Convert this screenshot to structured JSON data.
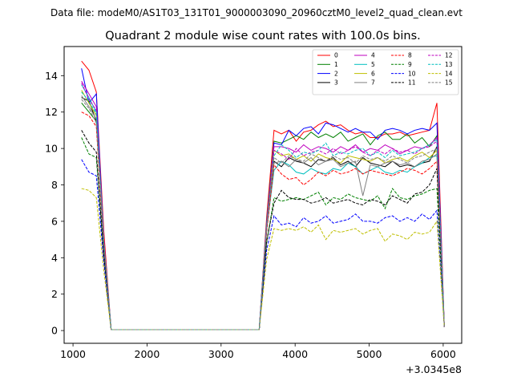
{
  "header": {
    "suptitle": "Data file: modeM0/AS1T03_131T01_9000003090_20960cztM0_level2_quad_clean.evt"
  },
  "chart_data": {
    "type": "line",
    "title": "Quadrant 2 module wise count rates with 100.0s bins.",
    "xlabel": "",
    "ylabel": "",
    "x_offset_label": "+3.0345e8",
    "xlim": [
      880,
      6250
    ],
    "ylim": [
      -0.7,
      15.6
    ],
    "x_ticks": [
      1000,
      2000,
      3000,
      4000,
      5000,
      6000
    ],
    "x_tick_labels": [
      "1000",
      "2000",
      "3000",
      "4000",
      "5000",
      "6000"
    ],
    "y_ticks": [
      0,
      2,
      4,
      6,
      8,
      10,
      12,
      14
    ],
    "y_tick_labels": [
      "0",
      "2",
      "4",
      "6",
      "8",
      "10",
      "12",
      "14"
    ],
    "grid": false,
    "legend_position": "upper right",
    "legend_columns": 4,
    "x": [
      1115,
      1215,
      1315,
      1415,
      1515,
      1615,
      1715,
      1815,
      1915,
      2015,
      2115,
      2215,
      2315,
      2415,
      2515,
      2615,
      2715,
      2815,
      2915,
      3015,
      3115,
      3215,
      3315,
      3415,
      3515,
      3615,
      3715,
      3815,
      3915,
      4015,
      4115,
      4215,
      4315,
      4415,
      4515,
      4615,
      4715,
      4815,
      4915,
      5015,
      5115,
      5215,
      5315,
      5415,
      5515,
      5615,
      5715,
      5815,
      5915,
      6015
    ],
    "series": [
      {
        "name": "0",
        "color": "#ff0000",
        "dash": "solid",
        "values": [
          14.8,
          14.3,
          13.1,
          5.5,
          0.05,
          0.05,
          0.05,
          0.05,
          0.05,
          0.05,
          0.05,
          0.05,
          0.05,
          0.05,
          0.05,
          0.05,
          0.05,
          0.05,
          0.05,
          0.05,
          0.05,
          0.05,
          0.05,
          0.05,
          0.05,
          6.2,
          11.0,
          10.8,
          11.0,
          10.4,
          10.9,
          11.0,
          11.3,
          11.5,
          11.2,
          11.3,
          11.0,
          10.8,
          10.9,
          10.6,
          10.6,
          10.8,
          10.8,
          10.9,
          10.7,
          10.8,
          10.9,
          11.0,
          12.5,
          0.2
        ]
      },
      {
        "name": "1",
        "color": "#008000",
        "dash": "solid",
        "values": [
          12.5,
          12.0,
          11.5,
          4.8,
          0.05,
          0.05,
          0.05,
          0.05,
          0.05,
          0.05,
          0.05,
          0.05,
          0.05,
          0.05,
          0.05,
          0.05,
          0.05,
          0.05,
          0.05,
          0.05,
          0.05,
          0.05,
          0.05,
          0.05,
          0.05,
          6.0,
          10.4,
          10.3,
          10.5,
          10.7,
          10.5,
          10.9,
          10.6,
          10.8,
          10.6,
          10.9,
          10.4,
          10.6,
          10.8,
          10.2,
          10.7,
          10.9,
          10.5,
          10.5,
          10.8,
          10.3,
          10.6,
          10.1,
          10.7,
          0.2
        ]
      },
      {
        "name": "2",
        "color": "#0000ff",
        "dash": "solid",
        "values": [
          14.4,
          12.5,
          13.0,
          5.0,
          0.05,
          0.05,
          0.05,
          0.05,
          0.05,
          0.05,
          0.05,
          0.05,
          0.05,
          0.05,
          0.05,
          0.05,
          0.05,
          0.05,
          0.05,
          0.05,
          0.05,
          0.05,
          0.05,
          0.05,
          0.05,
          5.8,
          10.3,
          10.2,
          11.0,
          10.7,
          11.1,
          11.2,
          10.8,
          11.4,
          11.3,
          11.1,
          10.9,
          11.1,
          10.9,
          10.9,
          10.5,
          11.0,
          11.1,
          11.0,
          10.8,
          11.0,
          11.1,
          11.0,
          11.4,
          0.2
        ]
      },
      {
        "name": "3",
        "color": "#000000",
        "dash": "solid",
        "values": [
          12.8,
          12.6,
          11.5,
          4.9,
          0.05,
          0.05,
          0.05,
          0.05,
          0.05,
          0.05,
          0.05,
          0.05,
          0.05,
          0.05,
          0.05,
          0.05,
          0.05,
          0.05,
          0.05,
          0.05,
          0.05,
          0.05,
          0.05,
          0.05,
          0.05,
          5.7,
          9.3,
          9.0,
          9.5,
          9.3,
          9.2,
          9.0,
          9.4,
          9.3,
          9.5,
          9.1,
          9.3,
          9.0,
          9.5,
          9.2,
          9.1,
          9.0,
          9.3,
          9.0,
          9.1,
          9.0,
          9.2,
          9.3,
          10.1,
          0.2
        ]
      },
      {
        "name": "4",
        "color": "#bf00bf",
        "dash": "solid",
        "values": [
          13.7,
          13.0,
          12.3,
          5.0,
          0.05,
          0.05,
          0.05,
          0.05,
          0.05,
          0.05,
          0.05,
          0.05,
          0.05,
          0.05,
          0.05,
          0.05,
          0.05,
          0.05,
          0.05,
          0.05,
          0.05,
          0.05,
          0.05,
          0.05,
          0.05,
          5.9,
          10.1,
          10.1,
          10.0,
          9.8,
          10.2,
          9.9,
          10.1,
          10.0,
          9.8,
          10.1,
          9.9,
          10.2,
          9.8,
          10.0,
          9.9,
          10.2,
          10.0,
          9.7,
          9.9,
          10.1,
          10.0,
          10.2,
          10.6,
          0.2
        ]
      },
      {
        "name": "5",
        "color": "#00bfbf",
        "dash": "solid",
        "values": [
          13.5,
          12.8,
          12.0,
          4.9,
          0.05,
          0.05,
          0.05,
          0.05,
          0.05,
          0.05,
          0.05,
          0.05,
          0.05,
          0.05,
          0.05,
          0.05,
          0.05,
          0.05,
          0.05,
          0.05,
          0.05,
          0.05,
          0.05,
          0.05,
          0.05,
          5.5,
          8.8,
          9.3,
          9.1,
          8.7,
          8.6,
          8.9,
          8.7,
          8.6,
          8.9,
          8.8,
          9.2,
          9.0,
          8.6,
          8.8,
          9.0,
          8.7,
          8.6,
          8.8,
          8.7,
          9.0,
          9.2,
          9.5,
          9.6,
          0.2
        ]
      },
      {
        "name": "6",
        "color": "#bfbf00",
        "dash": "solid",
        "values": [
          13.2,
          12.5,
          11.8,
          4.8,
          0.05,
          0.05,
          0.05,
          0.05,
          0.05,
          0.05,
          0.05,
          0.05,
          0.05,
          0.05,
          0.05,
          0.05,
          0.05,
          0.05,
          0.05,
          0.05,
          0.05,
          0.05,
          0.05,
          0.05,
          0.05,
          5.6,
          9.9,
          9.6,
          9.7,
          9.4,
          9.6,
          9.3,
          9.7,
          9.5,
          9.4,
          9.2,
          9.6,
          9.5,
          9.4,
          9.3,
          9.5,
          9.2,
          9.4,
          9.5,
          9.3,
          9.6,
          9.8,
          9.5,
          9.9,
          0.2
        ]
      },
      {
        "name": "7",
        "color": "#808080",
        "dash": "solid",
        "values": [
          12.9,
          12.3,
          11.6,
          4.8,
          0.05,
          0.05,
          0.05,
          0.05,
          0.05,
          0.05,
          0.05,
          0.05,
          0.05,
          0.05,
          0.05,
          0.05,
          0.05,
          0.05,
          0.05,
          0.05,
          0.05,
          0.05,
          0.05,
          0.05,
          0.05,
          5.5,
          9.2,
          9.3,
          9.0,
          9.4,
          9.2,
          9.5,
          9.1,
          9.3,
          9.4,
          9.0,
          9.2,
          9.3,
          7.4,
          9.1,
          9.0,
          9.2,
          9.3,
          9.1,
          9.2,
          9.0,
          9.3,
          9.4,
          9.7,
          0.2
        ]
      },
      {
        "name": "8",
        "color": "#ff0000",
        "dash": "dashed",
        "values": [
          12.0,
          11.8,
          11.2,
          4.6,
          0.05,
          0.05,
          0.05,
          0.05,
          0.05,
          0.05,
          0.05,
          0.05,
          0.05,
          0.05,
          0.05,
          0.05,
          0.05,
          0.05,
          0.05,
          0.05,
          0.05,
          0.05,
          0.05,
          0.05,
          0.05,
          5.4,
          9.1,
          8.6,
          8.3,
          8.4,
          8.0,
          8.3,
          8.7,
          8.5,
          8.8,
          8.6,
          8.7,
          8.9,
          8.6,
          8.8,
          8.7,
          8.6,
          8.5,
          8.7,
          8.9,
          8.8,
          8.6,
          8.9,
          9.3,
          0.2
        ]
      },
      {
        "name": "9",
        "color": "#008000",
        "dash": "dashed",
        "values": [
          10.6,
          9.7,
          9.5,
          4.1,
          0.05,
          0.05,
          0.05,
          0.05,
          0.05,
          0.05,
          0.05,
          0.05,
          0.05,
          0.05,
          0.05,
          0.05,
          0.05,
          0.05,
          0.05,
          0.05,
          0.05,
          0.05,
          0.05,
          0.05,
          0.05,
          4.8,
          7.3,
          7.1,
          7.2,
          7.3,
          7.2,
          7.4,
          7.6,
          6.9,
          7.3,
          7.2,
          7.5,
          7.3,
          7.2,
          7.1,
          7.4,
          6.7,
          7.8,
          7.3,
          7.2,
          7.4,
          7.5,
          7.7,
          7.8,
          0.2
        ]
      },
      {
        "name": "10",
        "color": "#0000ff",
        "dash": "dashed",
        "values": [
          9.4,
          8.7,
          8.5,
          3.8,
          0.05,
          0.05,
          0.05,
          0.05,
          0.05,
          0.05,
          0.05,
          0.05,
          0.05,
          0.05,
          0.05,
          0.05,
          0.05,
          0.05,
          0.05,
          0.05,
          0.05,
          0.05,
          0.05,
          0.05,
          0.05,
          4.4,
          6.3,
          5.8,
          5.9,
          5.7,
          6.2,
          5.9,
          6.0,
          6.3,
          5.9,
          6.0,
          6.1,
          6.4,
          6.0,
          6.0,
          5.9,
          6.2,
          6.3,
          6.0,
          6.2,
          6.0,
          6.4,
          6.1,
          6.6,
          0.2
        ]
      },
      {
        "name": "11",
        "color": "#000000",
        "dash": "dashed",
        "values": [
          11.0,
          10.3,
          9.8,
          4.2,
          0.05,
          0.05,
          0.05,
          0.05,
          0.05,
          0.05,
          0.05,
          0.05,
          0.05,
          0.05,
          0.05,
          0.05,
          0.05,
          0.05,
          0.05,
          0.05,
          0.05,
          0.05,
          0.05,
          0.05,
          0.05,
          4.9,
          7.0,
          7.7,
          7.3,
          7.2,
          7.2,
          7.0,
          7.1,
          7.3,
          7.0,
          7.1,
          7.2,
          7.0,
          6.9,
          7.2,
          7.1,
          6.9,
          7.4,
          7.2,
          7.0,
          7.5,
          7.6,
          8.0,
          8.9,
          0.2
        ]
      },
      {
        "name": "12",
        "color": "#bf00bf",
        "dash": "dashed",
        "values": [
          13.6,
          12.7,
          12.1,
          5.0,
          0.05,
          0.05,
          0.05,
          0.05,
          0.05,
          0.05,
          0.05,
          0.05,
          0.05,
          0.05,
          0.05,
          0.05,
          0.05,
          0.05,
          0.05,
          0.05,
          0.05,
          0.05,
          0.05,
          0.05,
          0.05,
          5.8,
          9.9,
          9.7,
          9.4,
          10.0,
          9.6,
          9.8,
          9.9,
          9.7,
          10.0,
          9.7,
          9.9,
          10.1,
          9.8,
          9.6,
          9.9,
          9.7,
          10.0,
          9.8,
          9.9,
          9.7,
          10.0,
          10.1,
          10.4,
          0.2
        ]
      },
      {
        "name": "13",
        "color": "#00bfbf",
        "dash": "dashed",
        "values": [
          13.1,
          12.6,
          11.9,
          4.9,
          0.05,
          0.05,
          0.05,
          0.05,
          0.05,
          0.05,
          0.05,
          0.05,
          0.05,
          0.05,
          0.05,
          0.05,
          0.05,
          0.05,
          0.05,
          0.05,
          0.05,
          0.05,
          0.05,
          0.05,
          0.05,
          5.7,
          9.6,
          10.2,
          9.9,
          9.5,
          9.8,
          9.7,
          9.9,
          10.3,
          9.6,
          9.8,
          9.7,
          9.9,
          10.0,
          9.6,
          9.8,
          9.5,
          9.9,
          9.6,
          9.7,
          9.8,
          10.0,
          10.2,
          10.5,
          0.2
        ]
      },
      {
        "name": "14",
        "color": "#bfbf00",
        "dash": "dashed",
        "values": [
          7.8,
          7.7,
          7.3,
          3.3,
          0.05,
          0.05,
          0.05,
          0.05,
          0.05,
          0.05,
          0.05,
          0.05,
          0.05,
          0.05,
          0.05,
          0.05,
          0.05,
          0.05,
          0.05,
          0.05,
          0.05,
          0.05,
          0.05,
          0.05,
          0.05,
          3.9,
          5.6,
          5.5,
          5.6,
          5.5,
          5.7,
          5.4,
          5.8,
          5.0,
          5.5,
          5.4,
          5.5,
          5.6,
          5.3,
          5.5,
          5.6,
          4.9,
          5.3,
          5.2,
          5.0,
          5.4,
          5.3,
          5.4,
          6.0,
          0.2
        ]
      },
      {
        "name": "15",
        "color": "#808080",
        "dash": "dashed",
        "values": [
          12.7,
          12.2,
          11.4,
          4.7,
          0.05,
          0.05,
          0.05,
          0.05,
          0.05,
          0.05,
          0.05,
          0.05,
          0.05,
          0.05,
          0.05,
          0.05,
          0.05,
          0.05,
          0.05,
          0.05,
          0.05,
          0.05,
          0.05,
          0.05,
          0.05,
          5.6,
          9.5,
          9.2,
          9.6,
          9.4,
          9.3,
          9.7,
          9.5,
          9.3,
          9.6,
          9.4,
          9.5,
          9.2,
          9.6,
          9.4,
          9.5,
          9.3,
          9.6,
          9.4,
          9.2,
          9.5,
          9.6,
          9.8,
          10.0,
          0.2
        ]
      }
    ]
  }
}
